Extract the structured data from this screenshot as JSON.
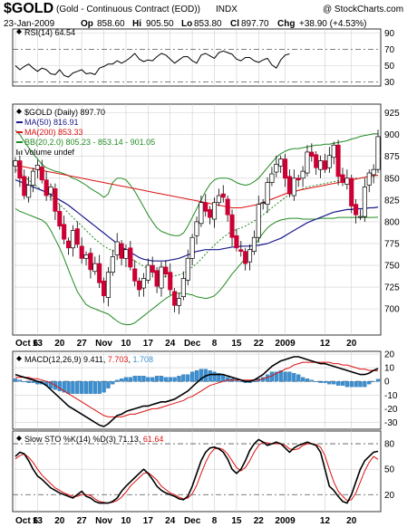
{
  "header": {
    "symbol": "$GOLD",
    "description": "(Gold - Continuous Contract (EOD))",
    "exchange": "INDX",
    "watermark": "@ StockCharts.com",
    "date": "23-Jan-2009",
    "open_label": "Op",
    "open": "858.60",
    "high_label": "Hi",
    "high": "905.50",
    "low_label": "Lo",
    "low": "853.80",
    "close_label": "Cl",
    "close": "897.70",
    "change_label": "Chg",
    "change": "+38.90 (+4.53%)"
  },
  "colors": {
    "background": "#ffffff",
    "panel_border": "#333333",
    "grid": "#cfcfcf",
    "up_candle": "#000000",
    "down_candle": "#cc0033",
    "ma50": "#1a1a8c",
    "ma200": "#dd1111",
    "bb": "#228b22",
    "bb_mid": "#228b22",
    "macd_line": "#000000",
    "macd_signal": "#dd1111",
    "macd_hist": "#3b8fd0",
    "sto_k": "#000000",
    "sto_d": "#dd1111"
  },
  "x_axis_labels": [
    "Oct 6",
    "13",
    "20",
    "27",
    "Nov",
    "10",
    "17",
    "24",
    "Dec",
    "8",
    "15",
    "22",
    "2009",
    "12",
    "20"
  ],
  "chart_data": [
    {
      "type": "line",
      "panel": "rsi",
      "legend": "RSI(14) 64.54",
      "legend_marker": "diamond",
      "ticks": [
        30,
        50,
        70,
        90
      ],
      "ylim": [
        25,
        95
      ],
      "dashed_levels": [
        30,
        70
      ],
      "series": [
        {
          "name": "RSI(14)",
          "values": [
            50,
            45,
            49,
            52,
            47,
            43,
            47,
            45,
            40,
            39,
            45,
            38,
            36,
            41,
            43,
            45,
            40,
            41,
            39,
            47,
            49,
            52,
            52,
            56,
            53,
            56,
            60,
            65,
            58,
            55,
            57,
            56,
            61,
            65,
            63,
            58,
            53,
            57,
            61,
            61,
            56,
            53,
            63,
            65,
            62,
            59,
            66,
            68,
            66,
            64,
            58,
            56,
            60,
            60,
            56,
            54,
            57,
            59,
            51,
            47,
            57,
            63,
            64.5
          ]
        }
      ]
    },
    {
      "type": "candlestick",
      "panel": "price",
      "legends": [
        {
          "text": "$GOLD (Daily) 897.70",
          "marker": "diamond"
        },
        {
          "text": "MA(50) 816.91",
          "marker": "line",
          "color": "#1a1a8c"
        },
        {
          "text": "MA(200) 853.33",
          "marker": "line",
          "color": "#dd1111"
        },
        {
          "text": "BB(20,2.0) 805.23 - 853.14 - 901.05",
          "marker": "line",
          "color": "#228b22"
        },
        {
          "text": "Volume undef",
          "marker": "bars"
        }
      ],
      "ticks": [
        700,
        725,
        750,
        775,
        800,
        825,
        850,
        875,
        900,
        925
      ],
      "ylim": [
        670,
        935
      ],
      "closes": [
        870,
        850,
        830,
        842,
        858,
        865,
        848,
        830,
        840,
        812,
        795,
        780,
        770,
        790,
        774,
        758,
        762,
        745,
        752,
        730,
        715,
        742,
        760,
        777,
        758,
        768,
        748,
        732,
        722,
        735,
        750,
        742,
        726,
        748,
        740,
        722,
        704,
        712,
        735,
        758,
        782,
        800,
        822,
        812,
        805,
        822,
        830,
        828,
        808,
        782,
        770,
        766,
        752,
        768,
        782,
        820,
        822,
        845,
        855,
        866,
        872,
        850,
        832,
        850,
        848,
        858,
        880,
        875,
        862,
        870,
        860,
        876,
        888,
        852,
        845,
        850,
        818,
        808,
        806,
        840,
        856,
        860,
        897.7
      ],
      "ma50": [
        848,
        846,
        844,
        842,
        840,
        838,
        836,
        834,
        831,
        828,
        825,
        822,
        819,
        815,
        811,
        807,
        803,
        799,
        795,
        791,
        787,
        783,
        779,
        775,
        771,
        768,
        765,
        762,
        759,
        757,
        756,
        755,
        755,
        755,
        755,
        756,
        757,
        758,
        760,
        762,
        764,
        766,
        767,
        768,
        768,
        768,
        768,
        769,
        770,
        771,
        771,
        772,
        772,
        772,
        773,
        773,
        774,
        775,
        777,
        779,
        781,
        784,
        787,
        790,
        793,
        796,
        799,
        801,
        803,
        805,
        807,
        809,
        811,
        812,
        813,
        814,
        814,
        815,
        815,
        815,
        816,
        816,
        816.9
      ],
      "ma200": [
        865,
        864,
        863,
        862,
        861,
        860,
        859,
        858,
        857,
        856,
        855,
        854,
        853,
        852,
        851,
        850,
        849,
        848,
        847,
        846,
        845,
        844,
        843,
        842,
        841,
        840,
        839,
        838,
        837,
        836,
        835,
        834,
        833,
        832,
        831,
        830,
        829,
        828,
        827,
        826,
        825,
        824,
        823,
        822,
        821,
        820,
        819,
        818,
        817,
        816,
        816,
        816,
        817,
        818,
        819,
        820,
        822,
        824,
        826,
        828,
        830,
        832,
        834,
        835,
        836,
        837,
        838,
        839,
        840,
        841,
        842,
        843,
        844,
        845,
        846,
        847,
        848,
        849,
        850,
        851,
        852,
        853,
        853.3
      ],
      "bb_upper": [
        905,
        900,
        892,
        885,
        878,
        872,
        866,
        862,
        860,
        858,
        857,
        855,
        853,
        850,
        848,
        845,
        842,
        838,
        835,
        832,
        828,
        832,
        845,
        850,
        850,
        848,
        842,
        835,
        826,
        817,
        808,
        800,
        793,
        789,
        787,
        785,
        784,
        784,
        787,
        795,
        805,
        815,
        825,
        835,
        843,
        848,
        850,
        850,
        850,
        848,
        845,
        843,
        842,
        843,
        846,
        850,
        856,
        862,
        868,
        874,
        878,
        881,
        883,
        884,
        884,
        885,
        886,
        887,
        888,
        888,
        889,
        889,
        890,
        891,
        892,
        893,
        895,
        896,
        898,
        899,
        900,
        901,
        901.05
      ],
      "bb_mid": [
        860,
        856,
        852,
        848,
        844,
        840,
        836,
        832,
        828,
        824,
        820,
        815,
        810,
        805,
        800,
        795,
        790,
        785,
        780,
        776,
        772,
        769,
        767,
        765,
        763,
        761,
        758,
        755,
        752,
        749,
        746,
        743,
        740,
        738,
        737,
        737,
        738,
        739,
        741,
        744,
        748,
        752,
        757,
        763,
        768,
        773,
        778,
        782,
        786,
        789,
        791,
        793,
        795,
        798,
        801,
        804,
        808,
        812,
        816,
        820,
        824,
        828,
        831,
        834,
        836,
        838,
        840,
        841,
        842,
        843,
        844,
        845,
        846,
        847,
        848,
        848,
        849,
        850,
        850,
        851,
        852,
        852,
        853.14
      ],
      "bb_lower": [
        815,
        812,
        810,
        808,
        806,
        804,
        802,
        798,
        790,
        780,
        770,
        758,
        745,
        732,
        720,
        712,
        705,
        702,
        700,
        698,
        696,
        694,
        690,
        686,
        683,
        682,
        682,
        684,
        688,
        692,
        696,
        700,
        704,
        708,
        712,
        715,
        718,
        718,
        718,
        717,
        716,
        714,
        713,
        712,
        713,
        715,
        720,
        726,
        733,
        740,
        746,
        752,
        758,
        765,
        772,
        780,
        787,
        793,
        797,
        800,
        802,
        803,
        804,
        804,
        804,
        803,
        803,
        803,
        803,
        804,
        804,
        804,
        804,
        805,
        805,
        805,
        805,
        805,
        805,
        805,
        805,
        805,
        805.23
      ]
    },
    {
      "type": "line",
      "panel": "macd",
      "legend": "MACD(12,26,9) 9.411, 7.703, 1.708",
      "legend_values": [
        9.411,
        7.703,
        1.708
      ],
      "ticks": [
        -30,
        -20,
        -10,
        0,
        10,
        20
      ],
      "ylim": [
        -35,
        22
      ],
      "series": [
        {
          "name": "MACD(12,26,9)",
          "values": [
            5,
            4,
            3,
            2,
            1,
            0,
            -1,
            -3,
            -6,
            -9,
            -12,
            -15,
            -18,
            -20,
            -22,
            -24,
            -26,
            -28,
            -30,
            -32,
            -33,
            -31,
            -28,
            -25,
            -24,
            -22,
            -21,
            -20,
            -19,
            -18,
            -18,
            -17,
            -16,
            -15,
            -15,
            -14,
            -13,
            -11,
            -9,
            -7,
            -4,
            -1,
            2,
            4,
            5,
            5,
            5,
            5,
            4,
            3,
            2,
            1,
            0,
            0,
            1,
            3,
            5,
            8,
            11,
            13,
            15,
            16,
            17,
            18,
            18,
            17,
            16,
            15,
            14,
            13,
            13,
            12,
            11,
            10,
            9,
            8,
            7,
            6,
            5,
            5,
            6,
            8,
            9.4
          ]
        },
        {
          "name": "Signal",
          "values": [
            3,
            3,
            3,
            3,
            2,
            2,
            1,
            0,
            -1,
            -3,
            -5,
            -7,
            -9,
            -11,
            -13,
            -15,
            -17,
            -19,
            -21,
            -23,
            -25,
            -26,
            -26,
            -26,
            -26,
            -25,
            -24,
            -24,
            -23,
            -22,
            -21,
            -20,
            -20,
            -19,
            -18,
            -17,
            -16,
            -15,
            -14,
            -12,
            -11,
            -9,
            -7,
            -5,
            -3,
            -2,
            -1,
            0,
            1,
            1,
            1,
            1,
            1,
            1,
            1,
            1,
            2,
            3,
            4,
            6,
            7,
            9,
            10,
            12,
            13,
            14,
            14,
            14,
            14,
            14,
            14,
            14,
            13,
            13,
            12,
            12,
            11,
            10,
            9,
            9,
            8,
            8,
            7.7
          ]
        }
      ],
      "histogram": [
        2,
        1,
        0,
        -1,
        -1,
        -2,
        -2,
        -3,
        -5,
        -6,
        -7,
        -8,
        -9,
        -9,
        -9,
        -9,
        -9,
        -9,
        -9,
        -9,
        -8,
        -5,
        -2,
        1,
        2,
        3,
        3,
        4,
        4,
        4,
        3,
        3,
        4,
        4,
        3,
        3,
        3,
        4,
        5,
        5,
        7,
        8,
        9,
        9,
        8,
        7,
        6,
        5,
        3,
        2,
        1,
        0,
        -1,
        -1,
        0,
        2,
        3,
        5,
        7,
        7,
        8,
        7,
        7,
        6,
        5,
        3,
        2,
        1,
        0,
        -1,
        -1,
        -2,
        -2,
        -3,
        -3,
        -4,
        -4,
        -4,
        -4,
        -4,
        -2,
        0,
        1.7
      ]
    },
    {
      "type": "line",
      "panel": "stochastic",
      "legend": "Slow STO %K(14) %D(3) 71.13, 61.64",
      "legend_values": [
        71.13,
        61.64
      ],
      "ticks": [
        20,
        50,
        80
      ],
      "ylim": [
        0,
        95
      ],
      "dashed_levels": [
        20,
        80
      ],
      "series": [
        {
          "name": "%K(14)",
          "values": [
            65,
            70,
            68,
            60,
            50,
            42,
            38,
            33,
            28,
            25,
            22,
            20,
            18,
            16,
            20,
            24,
            18,
            16,
            12,
            10,
            10,
            10,
            12,
            16,
            24,
            30,
            35,
            40,
            45,
            50,
            45,
            38,
            30,
            25,
            22,
            20,
            18,
            15,
            14,
            18,
            30,
            45,
            60,
            70,
            75,
            76,
            74,
            70,
            62,
            50,
            45,
            50,
            60,
            72,
            80,
            85,
            82,
            78,
            80,
            82,
            80,
            75,
            70,
            75,
            78,
            80,
            82,
            80,
            78,
            70,
            50,
            30,
            25,
            18,
            12,
            10,
            20,
            35,
            50,
            60,
            65,
            70,
            71.1
          ]
        },
        {
          "name": "%D(3)",
          "values": [
            62,
            66,
            68,
            64,
            58,
            50,
            43,
            38,
            33,
            28,
            25,
            22,
            20,
            18,
            18,
            20,
            20,
            19,
            15,
            12,
            11,
            10,
            11,
            13,
            17,
            23,
            30,
            35,
            40,
            45,
            46,
            42,
            37,
            30,
            26,
            22,
            20,
            17,
            15,
            16,
            21,
            31,
            45,
            58,
            68,
            74,
            75,
            73,
            68,
            60,
            52,
            48,
            52,
            60,
            70,
            78,
            82,
            81,
            80,
            80,
            80,
            78,
            74,
            73,
            74,
            78,
            80,
            80,
            79,
            76,
            66,
            50,
            35,
            24,
            18,
            13,
            14,
            22,
            35,
            48,
            58,
            65,
            61.6
          ]
        }
      ]
    }
  ]
}
